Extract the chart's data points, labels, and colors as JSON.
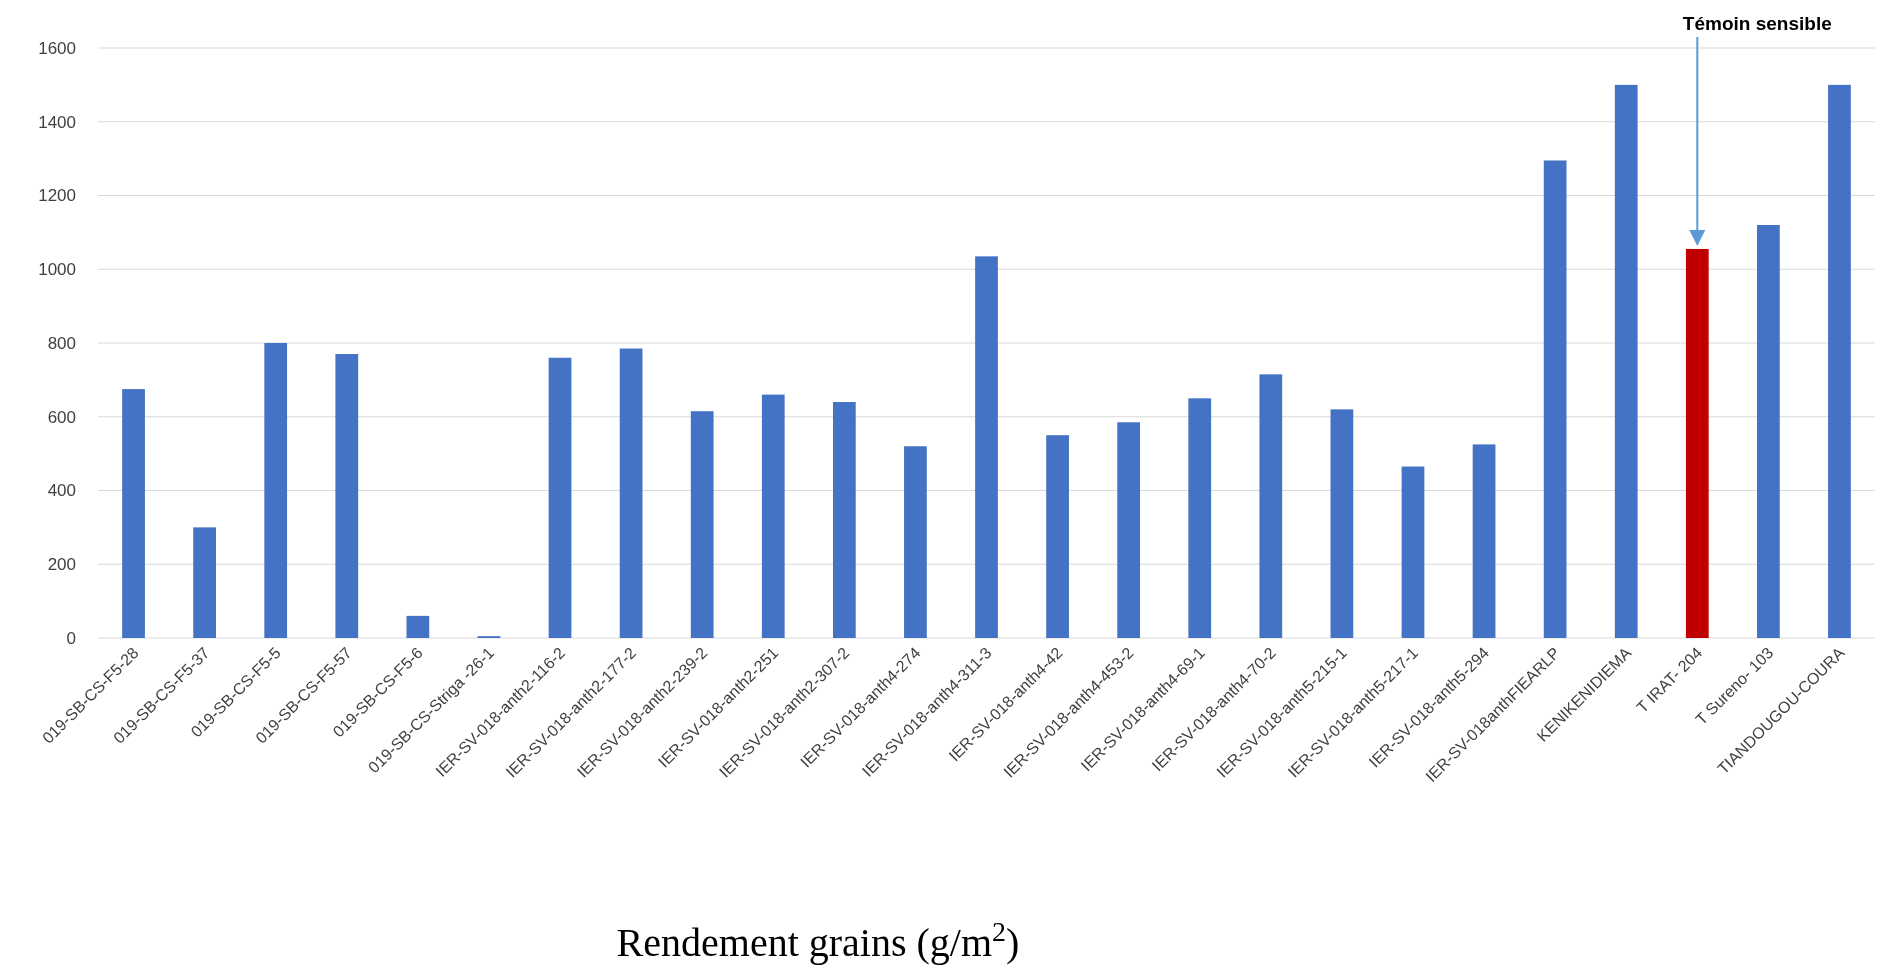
{
  "chart_data": {
    "type": "bar",
    "xlabel": "Rendement grains (g/m$^{2}$)",
    "categories": [
      "019-SB-CS-F5-28",
      "019-SB-CS-F5-37",
      "019-SB-CS-F5-5",
      "019-SB-CS-F5-57",
      "019-SB-CS-F5-6",
      "019-SB-CS-Striga -26-1",
      "IER-SV-018-anth2-116-2",
      "IER-SV-018-anth2-177-2",
      "IER-SV-018-anth2-239-2",
      "IER-SV-018-anth2-251",
      "IER-SV-018-anth2-307-2",
      "IER-SV-018-anth4-274",
      "IER-SV-018-anth4-311-3",
      "IER-SV-018-anth4-42",
      "IER-SV-018-anth4-453-2",
      "IER-SV-018-anth4-69-1",
      "IER-SV-018-anth4-70-2",
      "IER-SV-018-anth5-215-1",
      "IER-SV-018-anth5-217-1",
      "IER-SV-018-anth5-294",
      "IER-SV-018anthFIEARLP",
      "KENIKENIDIEMA",
      "T IRAT- 204",
      "T Sureno- 103",
      "TIANDOUGOU-COURA"
    ],
    "values": [
      675,
      300,
      800,
      770,
      60,
      5,
      760,
      785,
      615,
      660,
      640,
      520,
      1035,
      550,
      585,
      650,
      715,
      620,
      465,
      525,
      1295,
      1500,
      1055,
      1120,
      1500
    ],
    "colors": [
      "#4472c4",
      "#4472c4",
      "#4472c4",
      "#4472c4",
      "#4472c4",
      "#4472c4",
      "#4472c4",
      "#4472c4",
      "#4472c4",
      "#4472c4",
      "#4472c4",
      "#4472c4",
      "#4472c4",
      "#4472c4",
      "#4472c4",
      "#4472c4",
      "#4472c4",
      "#4472c4",
      "#4472c4",
      "#4472c4",
      "#4472c4",
      "#4472c4",
      "#c00000",
      "#4472c4",
      "#4472c4"
    ],
    "ylim": [
      0,
      1600
    ],
    "yticks": [
      0,
      200,
      400,
      600,
      800,
      1000,
      1200,
      1400,
      1600
    ],
    "grid": "y",
    "annotations": [
      "Témoin sensible"
    ]
  }
}
